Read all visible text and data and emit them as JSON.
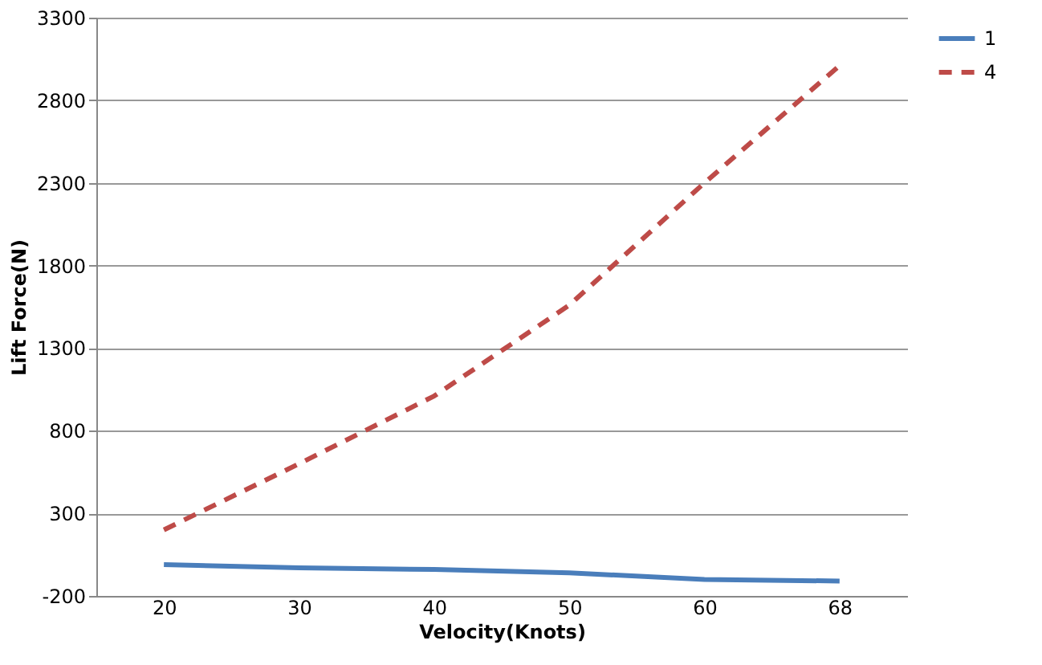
{
  "chart_data": {
    "type": "line",
    "xlabel": "Velocity(Knots)",
    "ylabel": "Lift Force(N)",
    "categories": [
      "20",
      "30",
      "40",
      "50",
      "60",
      "68"
    ],
    "series": [
      {
        "name": "1",
        "color": "#4a7ebb",
        "line_style": "solid",
        "values": [
          -10,
          -30,
          -40,
          -60,
          -100,
          -110
        ]
      },
      {
        "name": "4",
        "color": "#be4b48",
        "line_style": "dashed",
        "values": [
          200,
          600,
          1010,
          1560,
          2300,
          3010
        ]
      }
    ],
    "ylim": [
      -200,
      3300
    ],
    "yticks": [
      -200,
      300,
      800,
      1300,
      1800,
      2300,
      2800,
      3300
    ],
    "grid": "y",
    "legend": "right",
    "marker": "none"
  }
}
